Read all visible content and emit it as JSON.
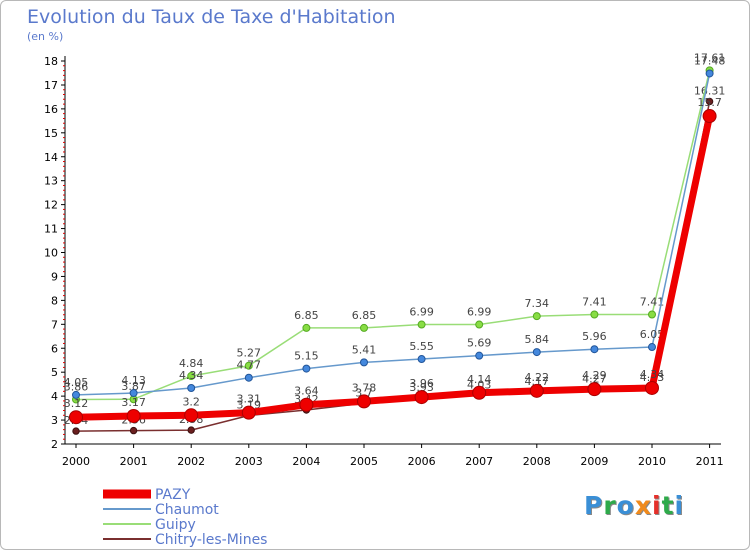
{
  "title": "Evolution du Taux de Taxe d'Habitation",
  "subtitle": "(en %)",
  "logo": "Proxiti",
  "colors": {
    "title": "#5a79cc",
    "legend_text": "#5a79cc",
    "PAZY": "#ee0000",
    "Chaumot": "#6699cc",
    "Guipy": "#99dd77",
    "Chitry-les-Mines": "#7a2f2f",
    "logo": [
      "#3a8fd6",
      "#2eaa4a",
      "#3a8fd6",
      "#f08a1c",
      "#e5302a",
      "#2eaa4a",
      "#3a8fd6"
    ]
  },
  "chart_data": {
    "type": "line",
    "title": "Evolution du Taux de Taxe d'Habitation",
    "subtitle": "(en %)",
    "x": [
      "2000",
      "2001",
      "2002",
      "2003",
      "2004",
      "2005",
      "2006",
      "2007",
      "2008",
      "2009",
      "2010",
      "2011"
    ],
    "ylim": [
      2,
      18
    ],
    "yticks": [
      2,
      3,
      4,
      5,
      6,
      7,
      8,
      9,
      10,
      11,
      12,
      13,
      14,
      15,
      16,
      17,
      18
    ],
    "grid": false,
    "legend": "bottom-left",
    "series": [
      {
        "name": "Chitry-les-Mines",
        "values": [
          2.54,
          2.56,
          2.58,
          3.19,
          3.42,
          3.7,
          3.93,
          4.03,
          4.17,
          4.27,
          4.33,
          16.31
        ],
        "labels": [
          "2.54",
          "2.56",
          "2.58",
          "3.19",
          "3.42",
          "3.7",
          "3.93",
          "4.03",
          "4.17",
          "4.27",
          "4.33",
          "16.31"
        ]
      },
      {
        "name": "Guipy",
        "values": [
          3.86,
          3.87,
          4.84,
          5.27,
          6.85,
          6.85,
          6.99,
          6.99,
          7.34,
          7.41,
          7.41,
          17.61
        ],
        "labels": [
          "3.86",
          "3.87",
          "4.84",
          "5.27",
          "6.85",
          "6.85",
          "6.99",
          "6.99",
          "7.34",
          "7.41",
          "7.41",
          "17.61"
        ]
      },
      {
        "name": "Chaumot",
        "values": [
          4.05,
          4.13,
          4.34,
          4.77,
          5.15,
          5.41,
          5.55,
          5.69,
          5.84,
          5.96,
          6.05,
          17.48
        ],
        "labels": [
          "4.05",
          "4.13",
          "4.34",
          "4.77",
          "5.15",
          "5.41",
          "5.55",
          "5.69",
          "5.84",
          "5.96",
          "6.05",
          "17.48"
        ]
      },
      {
        "name": "PAZY",
        "values": [
          3.12,
          3.17,
          3.2,
          3.31,
          3.64,
          3.78,
          3.96,
          4.14,
          4.22,
          4.29,
          4.34,
          15.7
        ],
        "labels": [
          "3.12",
          "3.17",
          "3.2",
          "3.31",
          "3.64",
          "3.78",
          "3.96",
          "4.14",
          "4.22",
          "4.29",
          "4.34",
          "15.7"
        ]
      }
    ]
  },
  "legend": [
    {
      "name": "PAZY"
    },
    {
      "name": "Chaumot"
    },
    {
      "name": "Guipy"
    },
    {
      "name": "Chitry-les-Mines"
    }
  ]
}
